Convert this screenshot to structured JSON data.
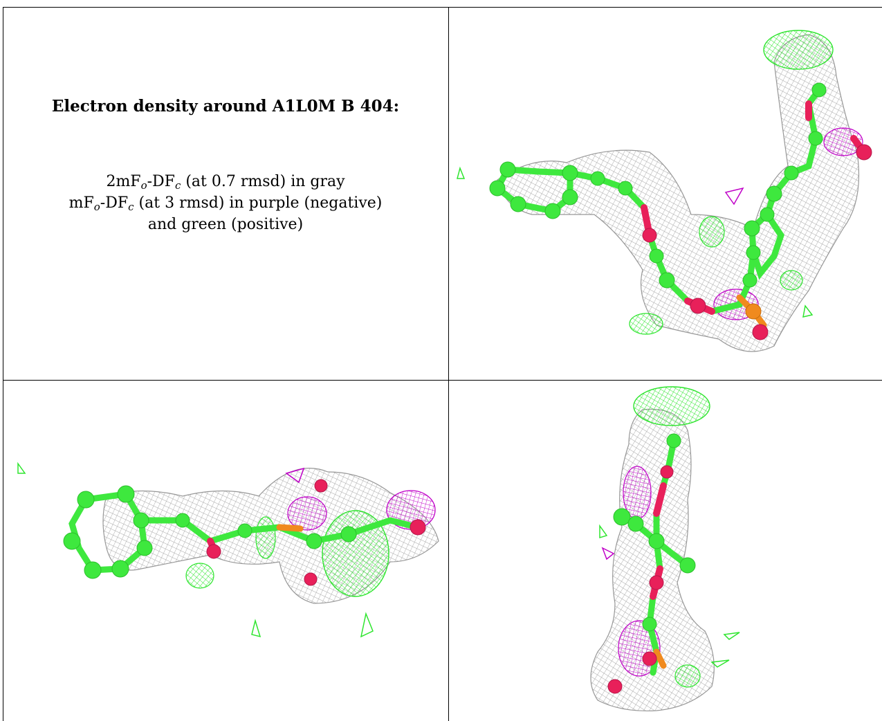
{
  "header": {
    "title": "Electron density around A1L0M B 404:"
  },
  "legend": {
    "line1": {
      "pre": "2mF",
      "sub1": "o",
      "mid": "-DF",
      "sub2": "c",
      "post": " (at 0.7 rmsd) in gray"
    },
    "line2": {
      "pre": "mF",
      "sub1": "o",
      "mid": "-DF",
      "sub2": "c",
      "post": " (at 3 rmsd) in purple (negative)"
    },
    "line3": "and green (positive)"
  },
  "colors": {
    "mesh_2fofc": "#9a9a9a",
    "mesh_negative": "#c000c8",
    "mesh_positive": "#2ee52e",
    "carbon": "#3ee83e",
    "oxygen": "#e8205a",
    "phosphorus": "#f08a1e"
  },
  "views": [
    "view-top-right",
    "view-bottom-left",
    "view-bottom-right"
  ]
}
